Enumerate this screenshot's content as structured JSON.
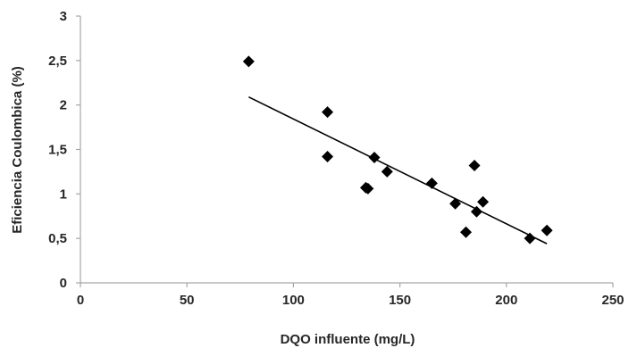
{
  "chart_data": {
    "type": "scatter",
    "title": "",
    "xlabel": "DQO influente (mg/L)",
    "ylabel": "Eficiencia Coulombica (%)",
    "xlim": [
      0,
      250
    ],
    "ylim": [
      0,
      3
    ],
    "x_ticks": [
      0,
      50,
      100,
      150,
      200,
      250
    ],
    "y_ticks": [
      0,
      0.5,
      1,
      1.5,
      2,
      2.5,
      3
    ],
    "x_tick_labels": [
      "0",
      "50",
      "100",
      "150",
      "200",
      "250"
    ],
    "y_tick_labels": [
      "0",
      "0,5",
      "1",
      "1,5",
      "2",
      "2,5",
      "3"
    ],
    "grid": false,
    "legend": "none",
    "marker": "diamond",
    "marker_color": "#000000",
    "points": [
      {
        "x": 79,
        "y": 2.49
      },
      {
        "x": 116,
        "y": 1.92
      },
      {
        "x": 116,
        "y": 1.42
      },
      {
        "x": 134,
        "y": 1.07
      },
      {
        "x": 135,
        "y": 1.06
      },
      {
        "x": 138,
        "y": 1.41
      },
      {
        "x": 144,
        "y": 1.25
      },
      {
        "x": 165,
        "y": 1.12
      },
      {
        "x": 176,
        "y": 0.89
      },
      {
        "x": 181,
        "y": 0.57
      },
      {
        "x": 185,
        "y": 1.32
      },
      {
        "x": 186,
        "y": 0.8
      },
      {
        "x": 189,
        "y": 0.91
      },
      {
        "x": 211,
        "y": 0.5
      },
      {
        "x": 219,
        "y": 0.59
      }
    ],
    "trendline": {
      "type": "linear",
      "x_start": 79,
      "y_start": 2.09,
      "x_end": 219,
      "y_end": 0.44,
      "color": "#000000"
    }
  }
}
